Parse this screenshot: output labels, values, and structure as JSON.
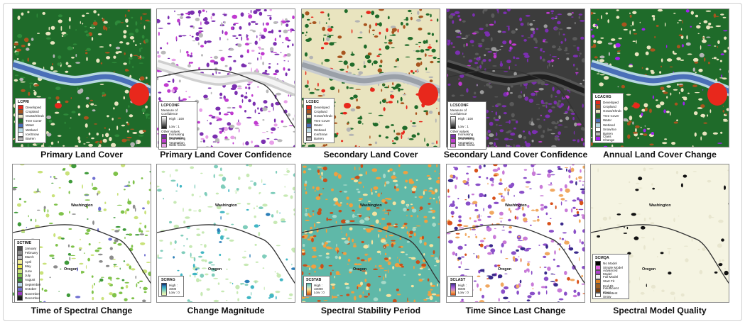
{
  "panels": [
    {
      "caption": "Primary Land Cover"
    },
    {
      "caption": "Primary Land Cover Confidence"
    },
    {
      "caption": "Secondary Land Cover"
    },
    {
      "caption": "Secondary Land Cover Confidence"
    },
    {
      "caption": "Annual Land Cover Change"
    },
    {
      "caption": "Time of Spectral Change"
    },
    {
      "caption": "Change Magnitude"
    },
    {
      "caption": "Spectral Stability Period"
    },
    {
      "caption": "Time Since Last Change"
    },
    {
      "caption": "Spectral Model Quality"
    }
  ],
  "states": {
    "north": "Washington",
    "south": "Oregon"
  },
  "legends": {
    "lcpri": {
      "title": "LCPRI",
      "items": [
        {
          "label": "Developed",
          "color": "#e8281c"
        },
        {
          "label": "Cropland",
          "color": "#a8541e"
        },
        {
          "label": "Grass/Shrub",
          "color": "#e9e4bf"
        },
        {
          "label": "Tree Cover",
          "color": "#1f6b2a"
        },
        {
          "label": "Water",
          "color": "#4a6fb8"
        },
        {
          "label": "Wetland",
          "color": "#b8d8e2"
        },
        {
          "label": "Ice/Snow",
          "color": "#ffffff"
        },
        {
          "label": "Barren",
          "color": "#b4b4b4"
        }
      ]
    },
    "lcpconf": {
      "title": "LCPCONF",
      "subtitle": "Measure of Confidence",
      "high": "High : 100",
      "low": "Low : 1",
      "other_title": "Other values",
      "items": [
        {
          "label": "Increasing Vegetation",
          "color": "#7b2fb0"
        },
        {
          "label": "Decreasing Vegetation",
          "color": "#c03ad0"
        },
        {
          "label": "Wide forest",
          "color": "#e8a0e8"
        }
      ]
    },
    "lcsec": {
      "title": "LCSEC",
      "items": [
        {
          "label": "Developed",
          "color": "#e8281c"
        },
        {
          "label": "Cropland",
          "color": "#a8541e"
        },
        {
          "label": "Grass/Shrub",
          "color": "#e9e4bf"
        },
        {
          "label": "Tree Cover",
          "color": "#1f6b2a"
        },
        {
          "label": "Water",
          "color": "#4a6fb8"
        },
        {
          "label": "Wetland",
          "color": "#b8d8e2"
        },
        {
          "label": "Ice/Snow",
          "color": "#ffffff"
        },
        {
          "label": "Barren",
          "color": "#b4b4b4"
        }
      ]
    },
    "lcsconf": {
      "title": "LCSCONF",
      "subtitle": "Measure of Confidence",
      "high": "High : 100",
      "low": "Low : 1",
      "other_title": "Other values",
      "items": [
        {
          "label": "Increasing Vegetation",
          "color": "#7b2fb0"
        },
        {
          "label": "Decreasing Vegetation",
          "color": "#c03ad0"
        },
        {
          "label": "Wide forest",
          "color": "#e8a0e8"
        }
      ]
    },
    "lcachg": {
      "title": "LCACHG",
      "items": [
        {
          "label": "Developed",
          "color": "#e8281c"
        },
        {
          "label": "Cropland",
          "color": "#a8541e"
        },
        {
          "label": "Grass/Shrub",
          "color": "#e9e4bf"
        },
        {
          "label": "Tree Cover",
          "color": "#1f6b2a"
        },
        {
          "label": "Water",
          "color": "#4a6fb8"
        },
        {
          "label": "Wetland",
          "color": "#b8d8e2"
        },
        {
          "label": "Snow/Ice",
          "color": "#ffffff"
        },
        {
          "label": "Barren",
          "color": "#b4b4b4"
        },
        {
          "label": "Class Change",
          "color": "#a020f0"
        }
      ]
    },
    "sctime": {
      "title": "SCTIME",
      "items": [
        {
          "label": "January",
          "color": "#4d4d4d"
        },
        {
          "label": "February",
          "color": "#8c8c8c"
        },
        {
          "label": "March",
          "color": "#bdbdbd"
        },
        {
          "label": "April",
          "color": "#f2ef9a"
        },
        {
          "label": "May",
          "color": "#e8e84a"
        },
        {
          "label": "June",
          "color": "#c9e27a"
        },
        {
          "label": "July",
          "color": "#7fc24a"
        },
        {
          "label": "August",
          "color": "#3f9a3a"
        },
        {
          "label": "September",
          "color": "#b9d7ea"
        },
        {
          "label": "October",
          "color": "#6f6fd0"
        },
        {
          "label": "November",
          "color": "#9a3ac0"
        },
        {
          "label": "December",
          "color": "#1a1a1a"
        }
      ]
    },
    "scmag": {
      "title": "SCMAG",
      "high": "High : 4000",
      "low": "Low : 0"
    },
    "scstab": {
      "title": "SCSTAB",
      "high": "High : 10000",
      "low": "Low : 0"
    },
    "sclast": {
      "title": "SCLAST",
      "high": "High : 8000",
      "low": "Low : 0"
    },
    "scmqa": {
      "title": "SCMQA",
      "items": [
        {
          "label": "No Model",
          "color": "#000000"
        },
        {
          "label": "Simple Model",
          "color": "#e060e0"
        },
        {
          "label": "Advanced Model",
          "color": "#b040d0"
        },
        {
          "label": "Full Model",
          "color": "#f0f0f0"
        },
        {
          "label": "Start Fit",
          "color": "#e08020"
        },
        {
          "label": "End Fit",
          "color": "#a06020"
        },
        {
          "label": "Insufficient Clear",
          "color": "#7a4010"
        },
        {
          "label": "Persistent Snow",
          "color": "#ffffff"
        }
      ]
    }
  }
}
